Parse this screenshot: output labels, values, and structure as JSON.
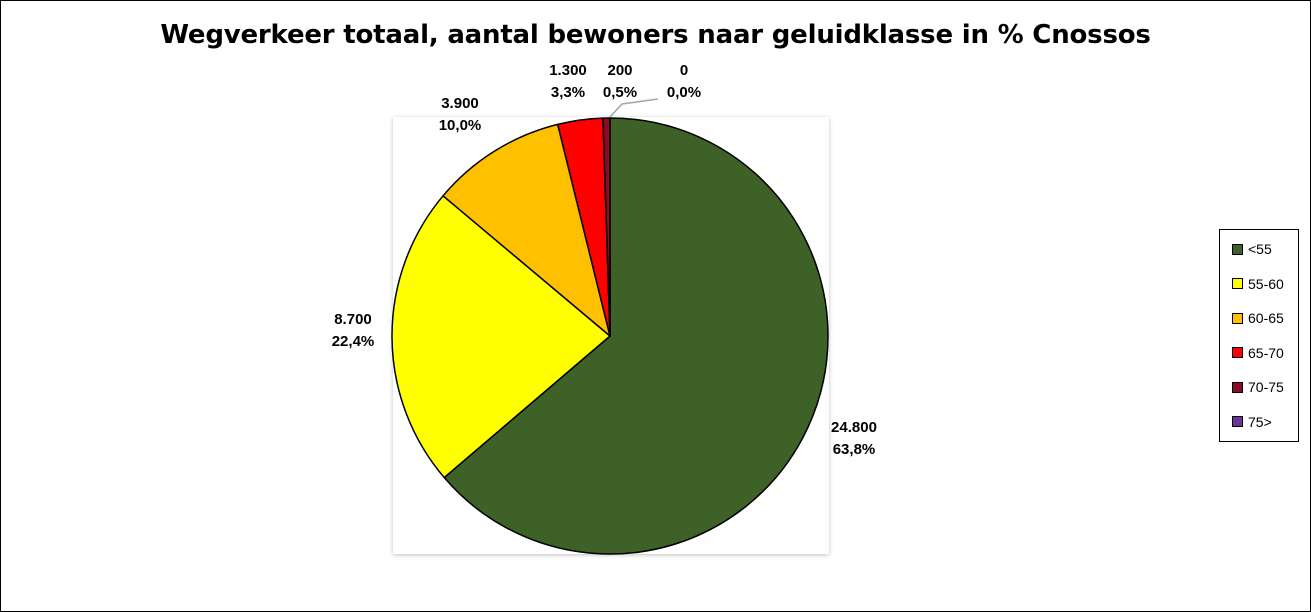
{
  "chart_data": {
    "type": "pie",
    "title": "Wegverkeer totaal, aantal bewoners naar geluidklasse in % Cnossos",
    "slices": [
      {
        "label": "<55",
        "value": 24800,
        "value_label": "24.800",
        "percent_label": "63,8%",
        "color": "#3e6128"
      },
      {
        "label": "55-60",
        "value": 8700,
        "value_label": "8.700",
        "percent_label": "22,4%",
        "color": "#ffff00"
      },
      {
        "label": "60-65",
        "value": 3900,
        "value_label": "3.900",
        "percent_label": "10,0%",
        "color": "#ffc000"
      },
      {
        "label": "65-70",
        "value": 1300,
        "value_label": "1.300",
        "percent_label": "3,3%",
        "color": "#ff0000"
      },
      {
        "label": "70-75",
        "value": 200,
        "value_label": "200",
        "percent_label": "0,5%",
        "color": "#8b0a26"
      },
      {
        "label": "75>",
        "value": 0,
        "value_label": "0",
        "percent_label": "0,0%",
        "color": "#7030a0"
      }
    ],
    "legend_position": "right"
  }
}
